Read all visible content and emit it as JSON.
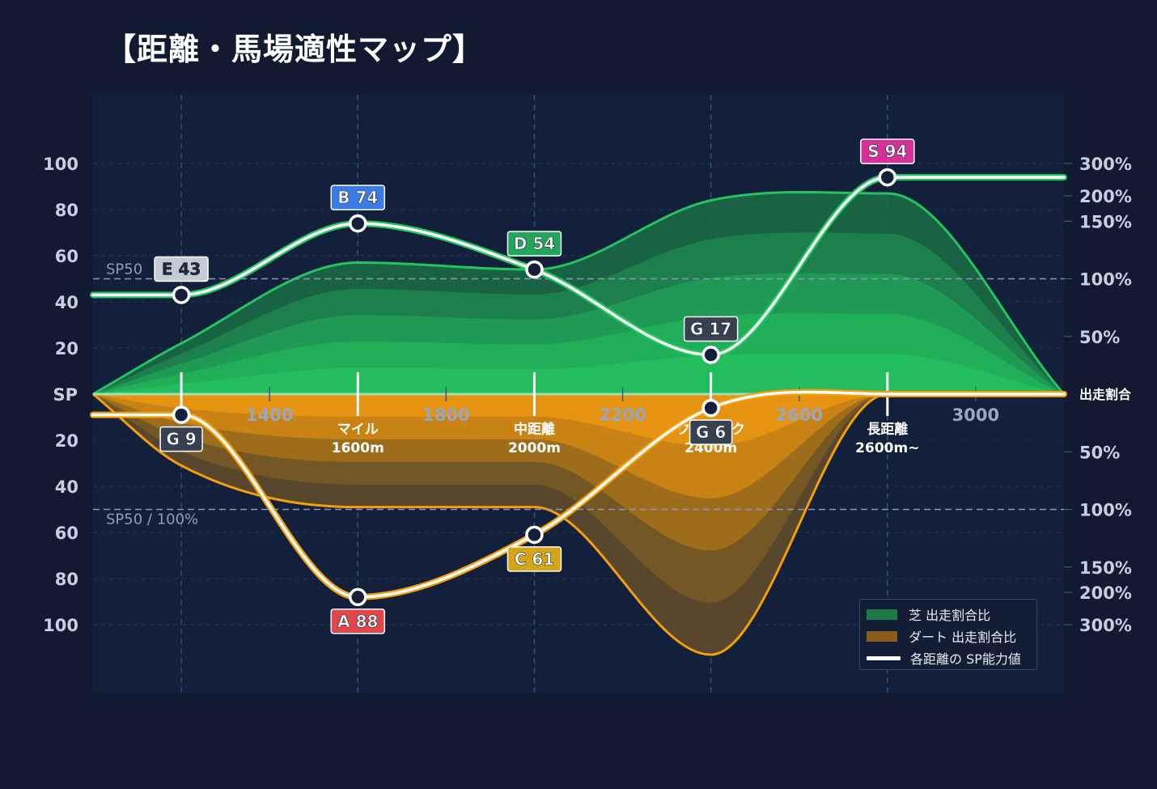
{
  "title": "【距離・馬場適性マップ】",
  "chart_data": {
    "type": "area",
    "x_ticks": [
      1400,
      1800,
      2200,
      2600,
      3000
    ],
    "x_range": [
      1000,
      3200
    ],
    "category_labels": [
      {
        "x": 1200,
        "line1": "",
        "line2": ""
      },
      {
        "x": 1600,
        "line1": "マイル",
        "line2": "1600m"
      },
      {
        "x": 2000,
        "line1": "中距離",
        "line2": "2000m"
      },
      {
        "x": 2400,
        "line1": "クラシック",
        "line2": "2400m"
      },
      {
        "x": 2800,
        "line1": "長距離",
        "line2": "2600m~"
      }
    ],
    "left_axis": {
      "zero_label": "SP",
      "ticks": [
        20,
        40,
        60,
        80,
        100
      ],
      "range": [
        0,
        100
      ]
    },
    "right_axis": {
      "zero_label": "出走割合",
      "top_ticks": [
        {
          "label": "300%",
          "sp": 100
        },
        {
          "label": "200%",
          "sp": 86
        },
        {
          "label": "150%",
          "sp": 75
        },
        {
          "label": "100%",
          "sp": 50
        },
        {
          "label": "50%",
          "sp": 25
        }
      ],
      "bottom_ticks": [
        {
          "label": "50%",
          "sp": 25
        },
        {
          "label": "100%",
          "sp": 50
        },
        {
          "label": "150%",
          "sp": 75
        },
        {
          "label": "200%",
          "sp": 86
        },
        {
          "label": "300%",
          "sp": 100
        }
      ]
    },
    "reference_lines": {
      "top_label": "SP50",
      "bottom_label": "SP50 / 100%",
      "value": 50
    },
    "turf_ratio": {
      "name": "芝 出走割合比",
      "x": [
        1000,
        1200,
        1600,
        2000,
        2400,
        2800,
        3200
      ],
      "values": [
        0,
        22,
        57,
        54,
        84,
        87,
        0
      ],
      "color": "#22c55e"
    },
    "dirt_ratio": {
      "name": "ダート 出走割合比",
      "x": [
        1000,
        1200,
        1600,
        2000,
        2400,
        2800,
        3200
      ],
      "values": [
        0,
        31,
        49,
        49,
        113,
        0,
        0
      ],
      "color": "#f59e0b"
    },
    "sp_series": {
      "name": "各距離の SP能力値",
      "turf": [
        {
          "x": 1200,
          "grade": "E",
          "value": 43,
          "color": "#c5cad6",
          "text_color": "#1f2937"
        },
        {
          "x": 1600,
          "grade": "B",
          "value": 74,
          "color": "#3b7be8",
          "text_color": "#ffffff"
        },
        {
          "x": 2000,
          "grade": "D",
          "value": 54,
          "color": "#22a65a",
          "text_color": "#ffffff"
        },
        {
          "x": 2400,
          "grade": "G",
          "value": 17,
          "color": "#374151",
          "text_color": "#ffffff"
        },
        {
          "x": 2800,
          "grade": "S",
          "value": 94,
          "color": "#d6309a",
          "text_color": "#ffffff"
        }
      ],
      "dirt": [
        {
          "x": 1200,
          "grade": "G",
          "value": 9,
          "color": "#374151",
          "text_color": "#ffffff"
        },
        {
          "x": 1600,
          "grade": "A",
          "value": 88,
          "color": "#e0464a",
          "text_color": "#ffffff"
        },
        {
          "x": 2000,
          "grade": "C",
          "value": 61,
          "color": "#d4a514",
          "text_color": "#ffffff"
        },
        {
          "x": 2400,
          "grade": "G",
          "value": 6,
          "color": "#374151",
          "text_color": "#ffffff"
        },
        {
          "x": 2800,
          "grade": "",
          "value": 0,
          "color": "",
          "text_color": ""
        }
      ]
    }
  },
  "legend": {
    "turf_label": "芝 出走割合比",
    "dirt_label": "ダート 出走割合比",
    "sp_label": "各距離の SP能力値",
    "turf_color": "#1f7a4a",
    "dirt_color": "#8a5c1c"
  }
}
